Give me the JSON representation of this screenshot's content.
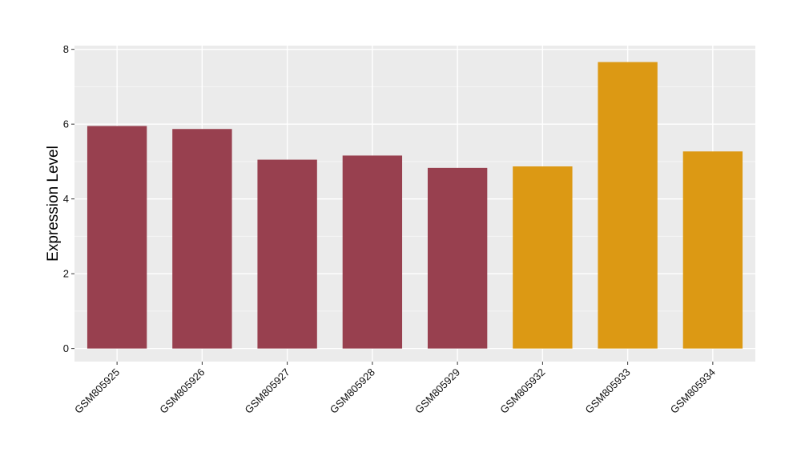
{
  "chart_data": {
    "type": "bar",
    "title": "",
    "xlabel": "",
    "ylabel": "Expression Level",
    "categories": [
      "GSM805925",
      "GSM805926",
      "GSM805927",
      "GSM805928",
      "GSM805929",
      "GSM805932",
      "GSM805933",
      "GSM805934"
    ],
    "values": [
      5.95,
      5.87,
      5.05,
      5.16,
      4.83,
      4.87,
      7.66,
      5.27
    ],
    "bar_colors": [
      "#98404f",
      "#98404f",
      "#98404f",
      "#98404f",
      "#98404f",
      "#dc9914",
      "#dc9914",
      "#dc9914"
    ],
    "ylim": [
      -0.35,
      8.1
    ],
    "yticks": [
      0,
      2,
      4,
      6,
      8
    ],
    "grid": true,
    "panel_background": "#ebebeb",
    "legend": "none"
  }
}
